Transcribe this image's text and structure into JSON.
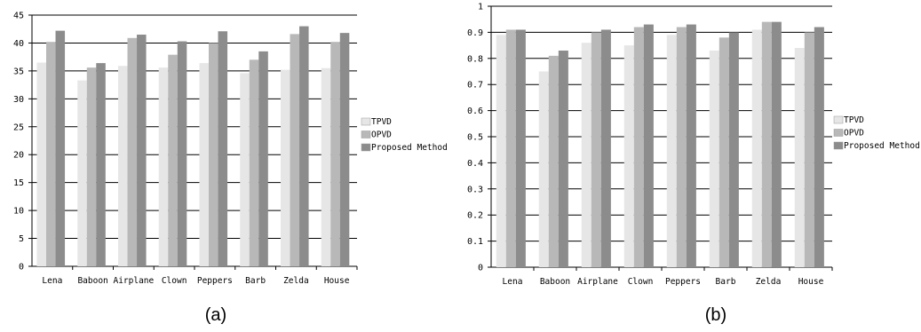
{
  "chart_data": [
    {
      "type": "bar",
      "caption": "(a)",
      "categories": [
        "Lena",
        "Baboon",
        "Airplane",
        "Clown",
        "Peppers",
        "Barb",
        "Zelda",
        "House"
      ],
      "series": [
        {
          "name": "TPVD",
          "color": "#e6e6e6",
          "values": [
            36.5,
            33.3,
            35.9,
            35.6,
            36.4,
            34.6,
            35.2,
            35.5
          ]
        },
        {
          "name": "OPVD",
          "color": "#b8b8b8",
          "values": [
            40.2,
            35.6,
            40.9,
            37.9,
            40.0,
            37.0,
            41.6,
            40.2
          ]
        },
        {
          "name": "Proposed Method",
          "color": "#8c8c8c",
          "values": [
            42.2,
            36.4,
            41.5,
            40.3,
            42.1,
            38.5,
            43.0,
            41.8
          ]
        }
      ],
      "ylim": [
        0,
        45
      ],
      "yticks": [
        "0",
        "5",
        "10",
        "15",
        "20",
        "25",
        "30",
        "35",
        "40",
        "45"
      ],
      "grid": true,
      "legend": "right"
    },
    {
      "type": "bar",
      "caption": "(b)",
      "categories": [
        "Lena",
        "Baboon",
        "Airplane",
        "Clown",
        "Peppers",
        "Barb",
        "Zelda",
        "House"
      ],
      "series": [
        {
          "name": "TPVD",
          "color": "#e6e6e6",
          "values": [
            0.89,
            0.75,
            0.86,
            0.85,
            0.89,
            0.83,
            0.91,
            0.84
          ]
        },
        {
          "name": "OPVD",
          "color": "#b8b8b8",
          "values": [
            0.91,
            0.81,
            0.9,
            0.92,
            0.92,
            0.88,
            0.94,
            0.9
          ]
        },
        {
          "name": "Proposed Method",
          "color": "#8c8c8c",
          "values": [
            0.91,
            0.83,
            0.91,
            0.93,
            0.93,
            0.9,
            0.94,
            0.92
          ]
        }
      ],
      "ylim": [
        0,
        1
      ],
      "yticks": [
        "0",
        "0.1",
        "0.2",
        "0.3",
        "0.4",
        "0.5",
        "0.6",
        "0.7",
        "0.8",
        "0.9",
        "1"
      ],
      "grid": true,
      "legend": "right"
    }
  ]
}
